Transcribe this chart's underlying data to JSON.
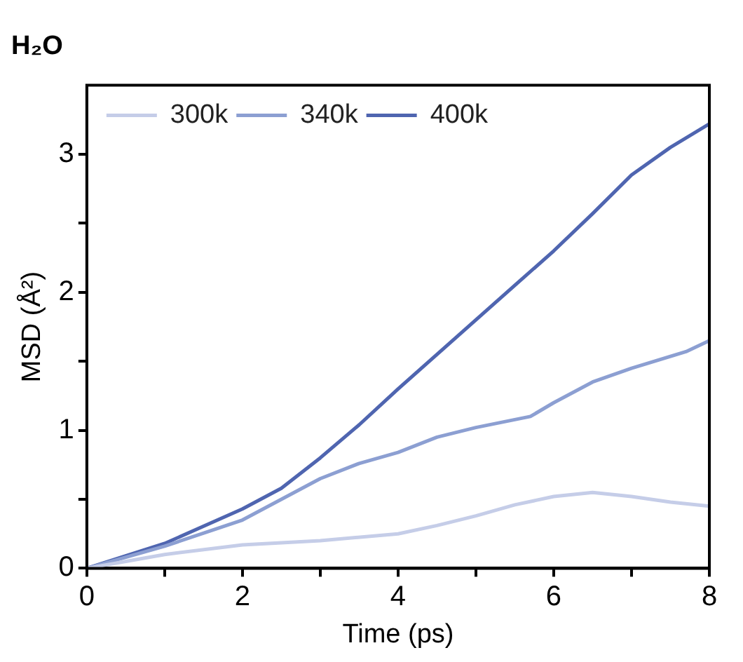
{
  "chart_data": {
    "type": "line",
    "title": "H₂O",
    "xlabel": "Time (ps)",
    "ylabel": "MSD (Å²)",
    "xlim": [
      0,
      8
    ],
    "xticks": [
      0,
      {
        "value": 1,
        "label": null
      },
      2,
      {
        "value": 3,
        "label": null
      },
      4,
      {
        "value": 5,
        "label": null
      },
      6,
      {
        "value": 7,
        "label": null
      },
      8
    ],
    "ylim": [
      0,
      3.5
    ],
    "yticks": [
      0,
      {
        "value": 0.5,
        "label": null
      },
      1,
      {
        "value": 1.5,
        "label": null
      },
      2,
      {
        "value": 2.5,
        "label": null
      },
      3
    ],
    "legend": "top left",
    "grid": false,
    "marker": "none",
    "line_style": "solid",
    "series": [
      {
        "name": "300k",
        "color": "#c5cde8",
        "x": [
          0,
          1,
          2,
          3,
          4,
          4.5,
          5,
          5.5,
          6,
          6.5,
          7,
          7.5,
          8
        ],
        "values": [
          0,
          0.1,
          0.17,
          0.2,
          0.25,
          0.31,
          0.38,
          0.46,
          0.52,
          0.55,
          0.52,
          0.48,
          0.45
        ]
      },
      {
        "name": "340k",
        "color": "#8c9fd2",
        "x": [
          0,
          1,
          2,
          3,
          3.5,
          4,
          4.5,
          5,
          5.7,
          6,
          6.5,
          7,
          7.7,
          8
        ],
        "values": [
          0,
          0.16,
          0.35,
          0.65,
          0.76,
          0.84,
          0.95,
          1.02,
          1.1,
          1.2,
          1.35,
          1.45,
          1.57,
          1.65
        ]
      },
      {
        "name": "400k",
        "color": "#4f65b0",
        "x": [
          0,
          1,
          2,
          2.5,
          3,
          3.5,
          4,
          4.5,
          5,
          5.5,
          6,
          6.5,
          7,
          7.5,
          8
        ],
        "values": [
          0,
          0.18,
          0.43,
          0.58,
          0.8,
          1.04,
          1.3,
          1.55,
          1.8,
          2.05,
          2.3,
          2.57,
          2.85,
          3.05,
          3.22
        ]
      }
    ]
  }
}
